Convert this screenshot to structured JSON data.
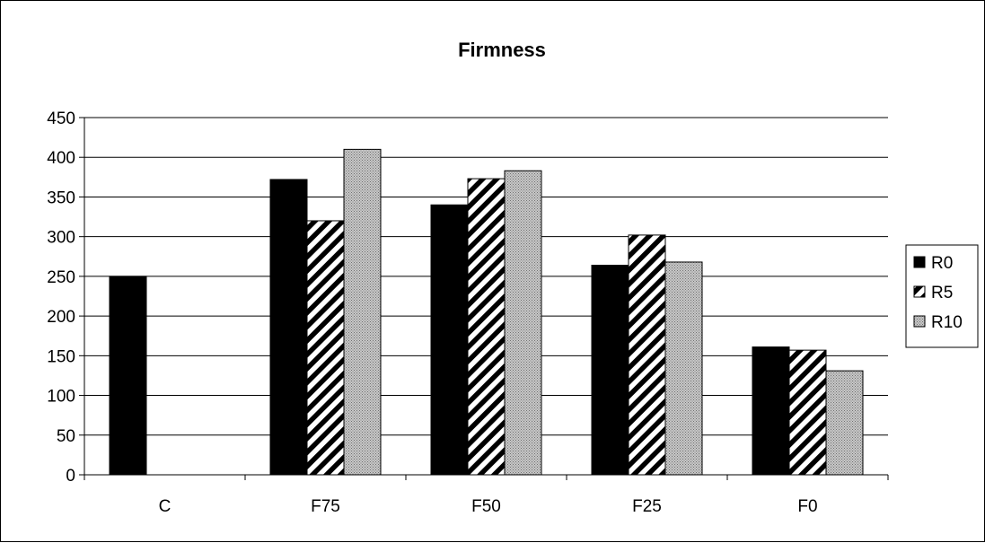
{
  "chart_data": {
    "type": "bar",
    "title": "Firmness",
    "categories": [
      "C",
      "F75",
      "F50",
      "F25",
      "F0"
    ],
    "series": [
      {
        "name": "R0",
        "values": [
          250,
          372,
          340,
          264,
          161
        ],
        "pattern": "solid"
      },
      {
        "name": "R5",
        "values": [
          null,
          320,
          373,
          302,
          157
        ],
        "pattern": "diagonal-stripes"
      },
      {
        "name": "R10",
        "values": [
          null,
          410,
          383,
          268,
          131
        ],
        "pattern": "dotted-gray"
      }
    ],
    "ylim": [
      0,
      450
    ],
    "yticks": [
      "0",
      "50",
      "100",
      "150",
      "200",
      "250",
      "300",
      "350",
      "400",
      "450"
    ],
    "grid": true,
    "legend_position": "right"
  }
}
